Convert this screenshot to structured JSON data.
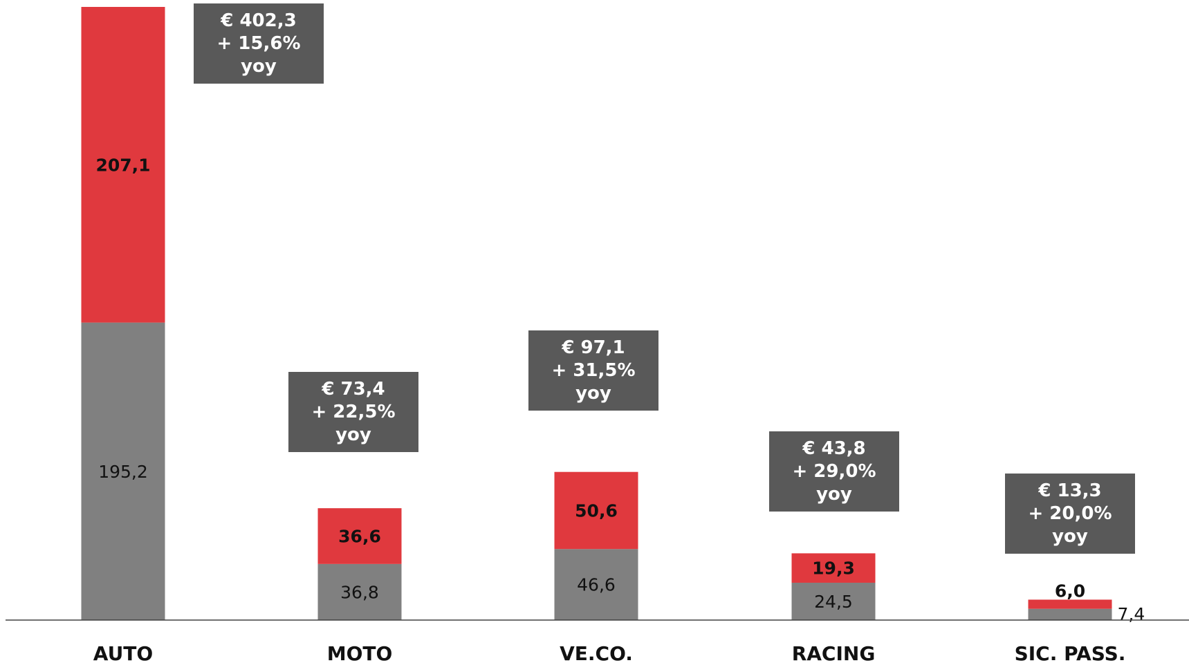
{
  "chart_data": {
    "type": "bar",
    "stacked": true,
    "categories": [
      "AUTO",
      "MOTO",
      "VE.CO.",
      "RACING",
      "SIC. PASS."
    ],
    "series": [
      {
        "values": [
          195.2,
          36.8,
          46.6,
          24.5,
          7.4
        ],
        "labels": [
          "195,2",
          "36,8",
          "46,6",
          "24,5",
          "7,4"
        ],
        "color": "#808080"
      },
      {
        "values": [
          207.1,
          36.6,
          50.6,
          19.3,
          6.0
        ],
        "labels": [
          "207,1",
          "36,6",
          "50,6",
          "19,3",
          "6,0"
        ],
        "color": "#e0393e"
      }
    ],
    "annotations": [
      {
        "category": "AUTO",
        "lines": [
          "€ 402,3",
          "+ 15,6%",
          "yoy"
        ]
      },
      {
        "category": "MOTO",
        "lines": [
          "€ 73,4",
          "+ 22,5%",
          "yoy"
        ]
      },
      {
        "category": "VE.CO.",
        "lines": [
          "€ 97,1",
          "+ 31,5%",
          "yoy"
        ]
      },
      {
        "category": "RACING",
        "lines": [
          "€ 43,8",
          "+ 29,0%",
          "yoy"
        ]
      },
      {
        "category": "SIC. PASS.",
        "lines": [
          "€ 13,3",
          "+ 20,0%",
          "yoy"
        ]
      }
    ],
    "annotation_color": "#595959",
    "axis_color": "#404040",
    "ylim": [
      0,
      402.3
    ],
    "grid": false,
    "legend": "none"
  }
}
